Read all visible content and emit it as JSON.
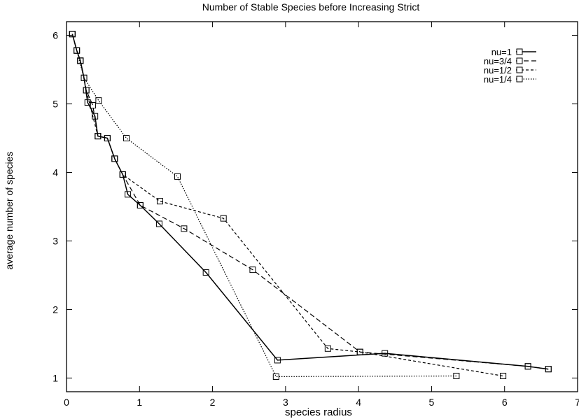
{
  "chart_data": {
    "type": "line",
    "title": "Number of Stable Species before Increasing Strict",
    "xlabel": "species radius",
    "ylabel": "average number of species",
    "xlim": [
      0,
      7
    ],
    "ylim": [
      0.8,
      6.2
    ],
    "xticks": [
      0,
      1,
      2,
      3,
      4,
      5,
      6,
      7
    ],
    "yticks": [
      1,
      2,
      3,
      4,
      5,
      6
    ],
    "grid": false,
    "legend_position": "top-right",
    "series": [
      {
        "name": "nu=1",
        "style": "solid",
        "points": [
          [
            0.08,
            6.02
          ],
          [
            0.14,
            5.78
          ],
          [
            0.19,
            5.63
          ],
          [
            0.24,
            5.38
          ],
          [
            0.29,
            5.02
          ],
          [
            0.39,
            4.82
          ],
          [
            0.43,
            4.53
          ],
          [
            0.56,
            4.5
          ],
          [
            0.66,
            4.2
          ],
          [
            0.77,
            3.97
          ],
          [
            0.84,
            3.68
          ],
          [
            1.01,
            3.52
          ],
          [
            1.27,
            3.25
          ],
          [
            1.91,
            2.54
          ],
          [
            2.89,
            1.26
          ],
          [
            4.36,
            1.36
          ],
          [
            6.32,
            1.17
          ],
          [
            6.6,
            1.13
          ]
        ]
      },
      {
        "name": "nu=3/4",
        "style": "dashed",
        "points": [
          [
            0.08,
            6.02
          ],
          [
            0.14,
            5.78
          ],
          [
            0.19,
            5.63
          ],
          [
            0.27,
            5.2
          ],
          [
            0.36,
            4.98
          ],
          [
            0.43,
            4.53
          ],
          [
            0.56,
            4.5
          ],
          [
            0.66,
            4.2
          ],
          [
            0.77,
            3.97
          ],
          [
            1.01,
            3.52
          ],
          [
            1.61,
            3.18
          ],
          [
            2.55,
            2.58
          ],
          [
            4.02,
            1.38
          ],
          [
            6.32,
            1.17
          ],
          [
            6.6,
            1.13
          ]
        ]
      },
      {
        "name": "nu=1/2",
        "style": "short-dashed",
        "points": [
          [
            0.08,
            6.02
          ],
          [
            0.14,
            5.78
          ],
          [
            0.19,
            5.63
          ],
          [
            0.27,
            5.2
          ],
          [
            0.43,
            4.53
          ],
          [
            0.56,
            4.5
          ],
          [
            0.66,
            4.2
          ],
          [
            0.77,
            3.97
          ],
          [
            1.28,
            3.58
          ],
          [
            2.15,
            3.33
          ],
          [
            3.58,
            1.43
          ],
          [
            4.02,
            1.38
          ],
          [
            5.98,
            1.03
          ]
        ]
      },
      {
        "name": "nu=1/4",
        "style": "dotted",
        "points": [
          [
            0.08,
            6.02
          ],
          [
            0.14,
            5.78
          ],
          [
            0.24,
            5.38
          ],
          [
            0.44,
            5.05
          ],
          [
            0.82,
            4.5
          ],
          [
            1.52,
            3.94
          ],
          [
            2.87,
            1.02
          ],
          [
            5.34,
            1.03
          ]
        ]
      }
    ]
  }
}
